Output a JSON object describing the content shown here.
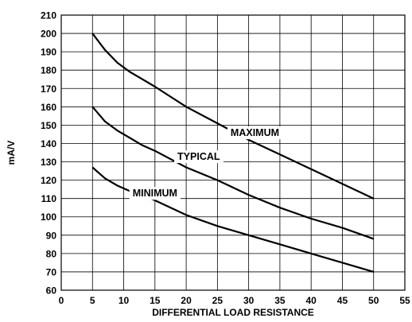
{
  "chart_data": {
    "type": "line",
    "xlabel": "DIFFERENTIAL LOAD RESISTANCE",
    "ylabel": "mA/V",
    "xlim": [
      0,
      55
    ],
    "ylim": [
      60,
      210
    ],
    "x_ticks": [
      0,
      5,
      10,
      15,
      20,
      25,
      30,
      35,
      40,
      45,
      50,
      55
    ],
    "y_ticks": [
      60,
      70,
      80,
      90,
      100,
      110,
      120,
      130,
      140,
      150,
      160,
      170,
      180,
      190,
      200,
      210
    ],
    "grid": true,
    "series": [
      {
        "name": "MAXIMUM",
        "x": [
          5,
          7,
          9,
          11,
          13,
          15,
          20,
          25,
          30,
          35,
          40,
          45,
          50
        ],
        "y": [
          200,
          191,
          184,
          179,
          175,
          171,
          160,
          151,
          142,
          134,
          126,
          118,
          110
        ]
      },
      {
        "name": "TYPICAL",
        "x": [
          5,
          7,
          9,
          11,
          13,
          15,
          20,
          25,
          30,
          35,
          40,
          45,
          50
        ],
        "y": [
          160,
          152,
          147,
          143,
          139,
          136,
          127,
          120,
          112,
          105,
          99,
          94,
          88
        ]
      },
      {
        "name": "MINIMUM",
        "x": [
          5,
          7,
          9,
          11,
          13,
          15,
          20,
          25,
          30,
          35,
          40,
          45,
          50
        ],
        "y": [
          127,
          121,
          117,
          114,
          112,
          109,
          101,
          95,
          90,
          85,
          80,
          75,
          70
        ]
      }
    ],
    "series_label_positions": [
      {
        "name": "MAXIMUM",
        "x": 31,
        "y": 146
      },
      {
        "name": "TYPICAL",
        "x": 22,
        "y": 133
      },
      {
        "name": "MINIMUM",
        "x": 15,
        "y": 113
      }
    ]
  }
}
